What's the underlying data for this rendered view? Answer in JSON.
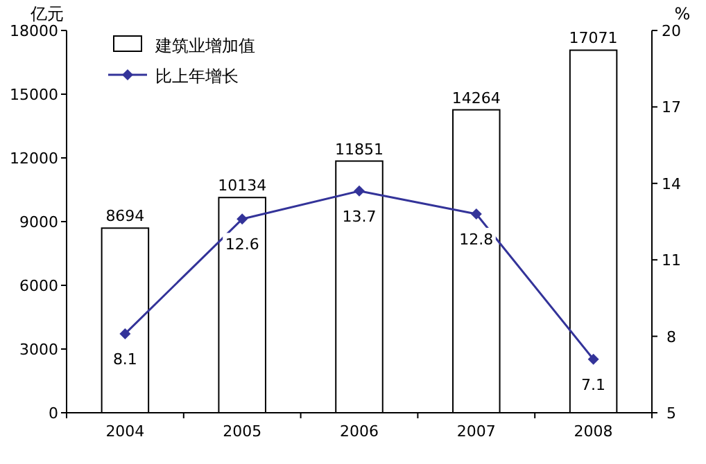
{
  "chart_data": {
    "type": "bar",
    "categories": [
      "2004",
      "2005",
      "2006",
      "2007",
      "2008"
    ],
    "ylabel": "亿元",
    "y2label": "%",
    "ylim": [
      0,
      18000
    ],
    "yticks": [
      0,
      3000,
      6000,
      9000,
      12000,
      15000,
      18000
    ],
    "y2lim": [
      5,
      20
    ],
    "y2ticks": [
      5,
      8,
      11,
      14,
      17,
      20
    ],
    "legend": "top left",
    "data_labels": true,
    "marker": "diamond",
    "series": [
      {
        "name": "建筑业增加值",
        "color": "#ffffff",
        "values": [
          8694,
          10134,
          11851,
          14264,
          17071
        ]
      },
      {
        "name": "比上年增长",
        "type": "line",
        "axis": "y2",
        "color": "#333399",
        "values": [
          8.1,
          12.6,
          13.7,
          12.8,
          7.1
        ]
      }
    ]
  }
}
